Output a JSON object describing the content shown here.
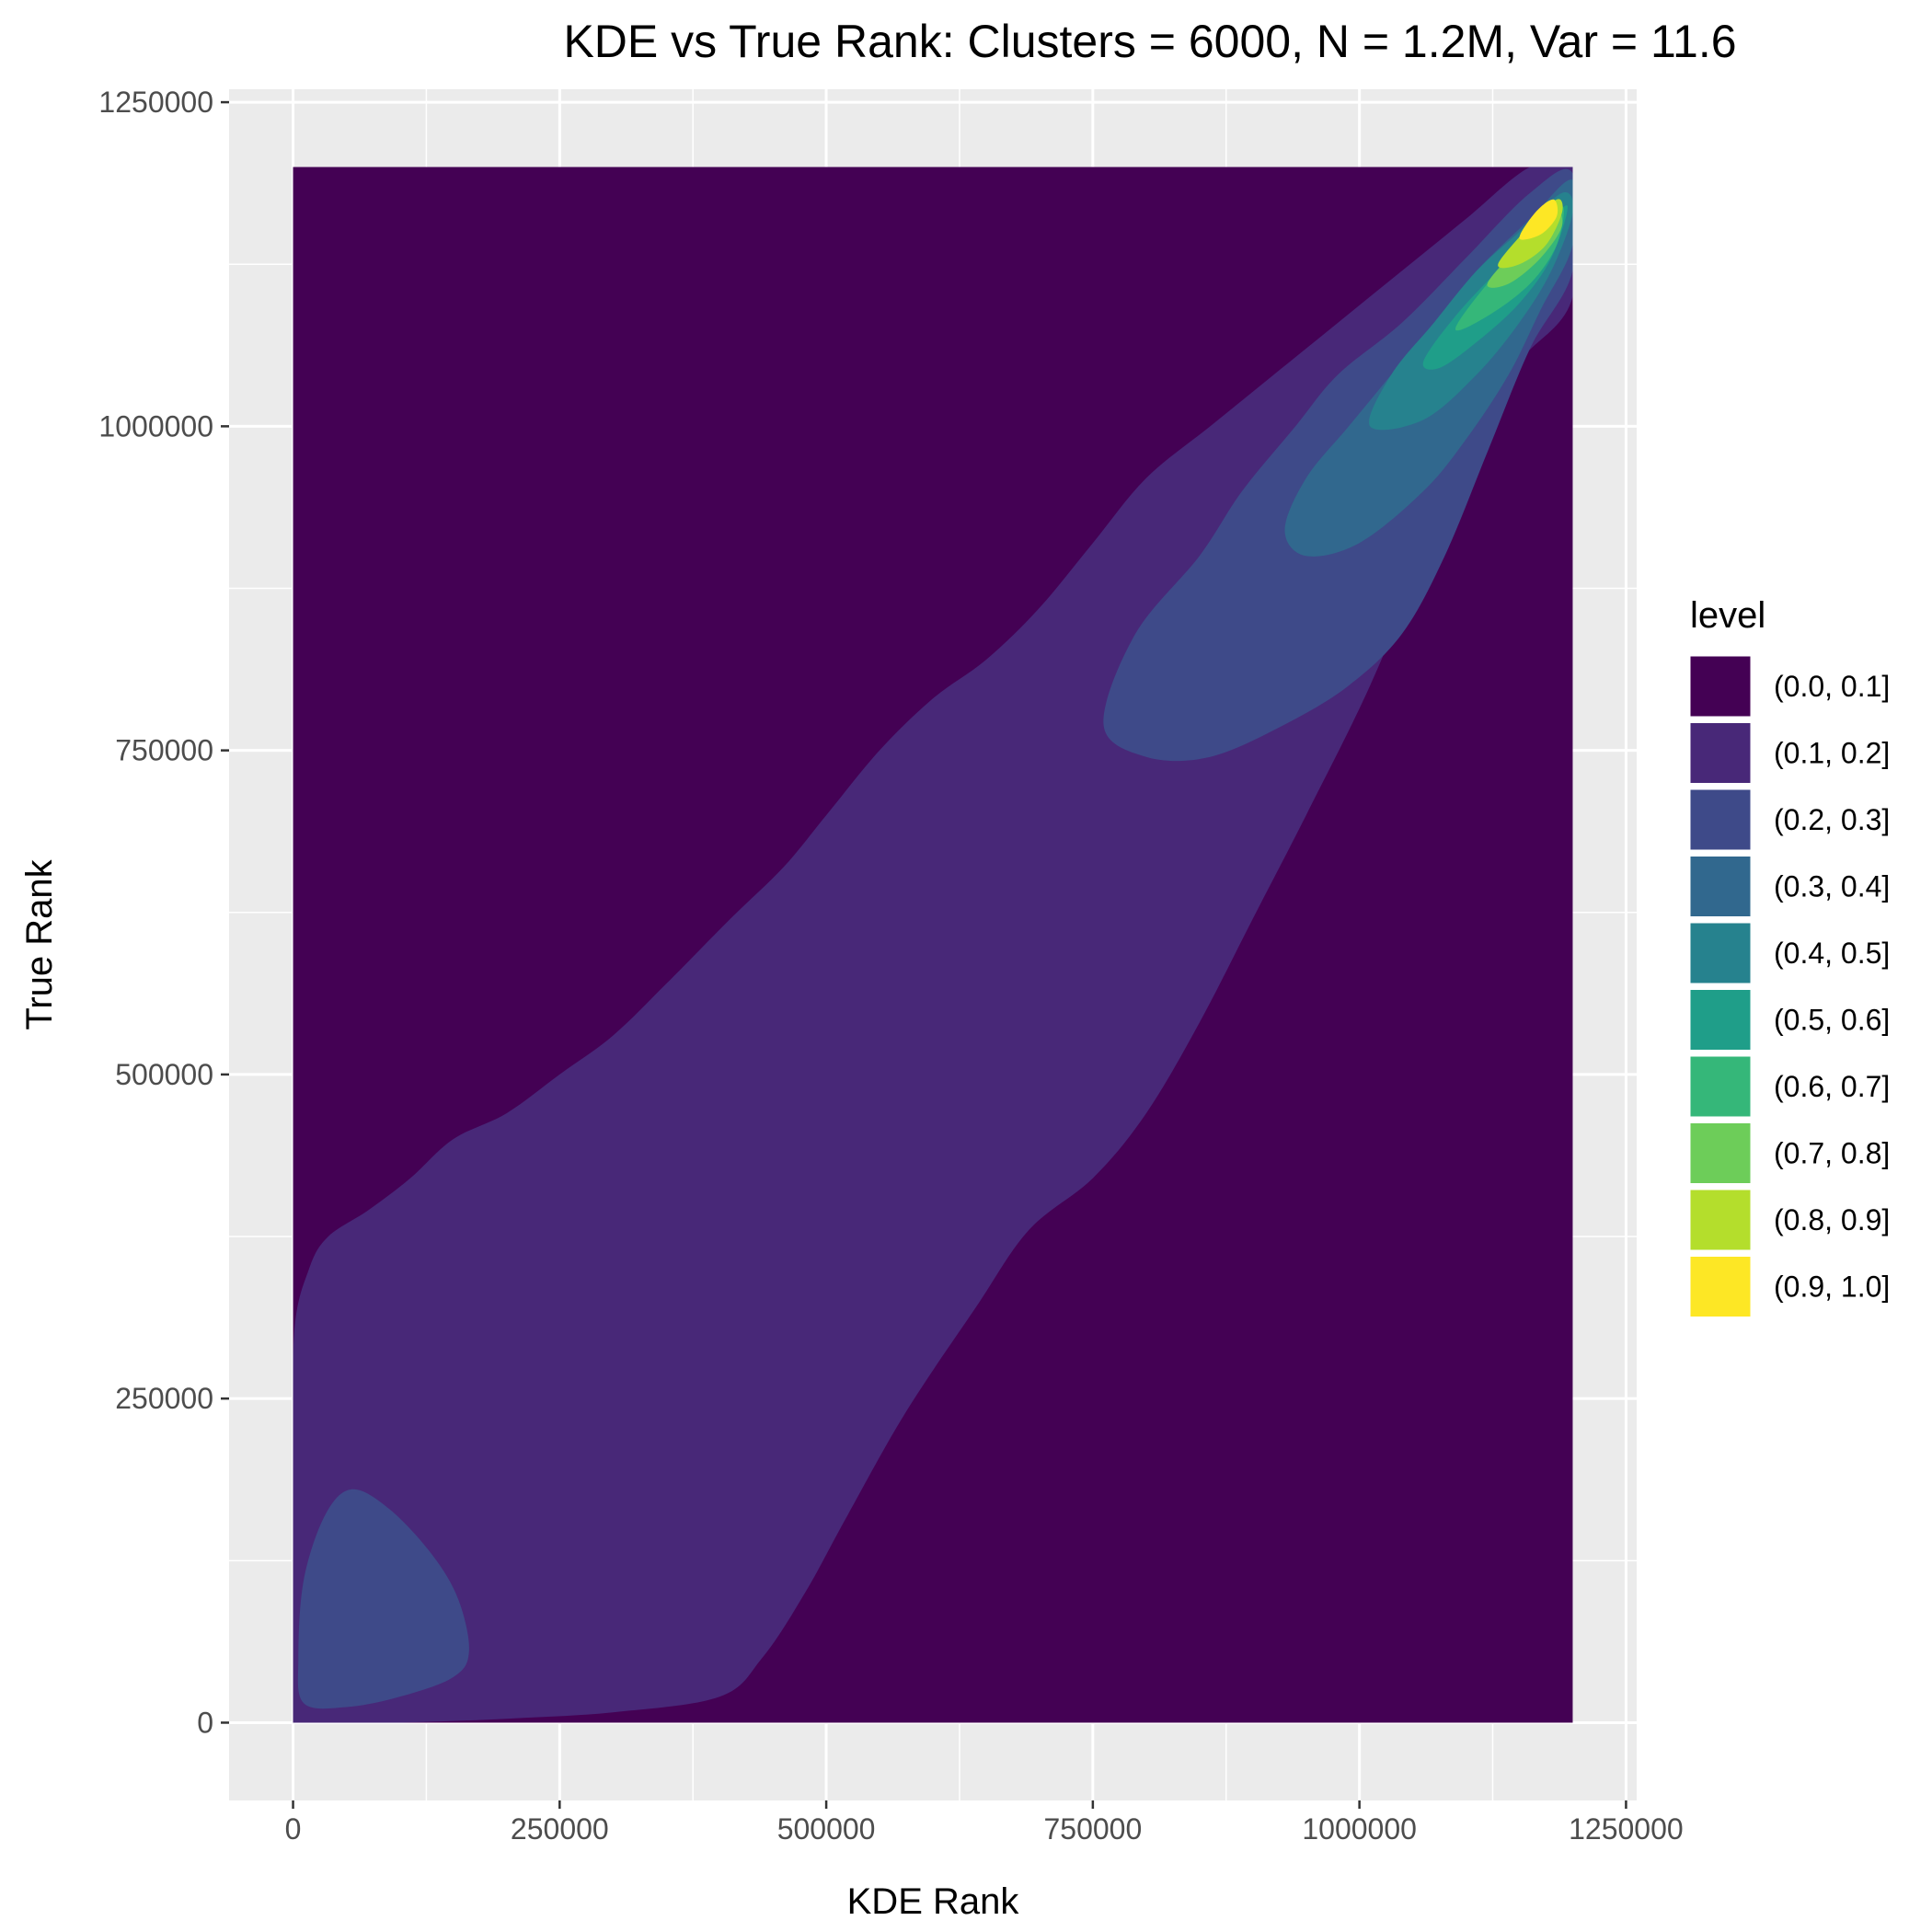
{
  "chart_data": {
    "type": "density-contour",
    "title": "KDE vs True Rank: Clusters = 6000, N = 1.2M, Var = 11.6",
    "xlabel": "KDE Rank",
    "ylabel": "True Rank",
    "xlim": [
      -60000,
      1260000
    ],
    "ylim": [
      -60000,
      1260000
    ],
    "x_ticks": [
      0,
      250000,
      500000,
      750000,
      1000000,
      1250000
    ],
    "x_tick_labels": [
      "0",
      "250000",
      "500000",
      "750000",
      "1000000",
      "1250000"
    ],
    "y_ticks": [
      0,
      250000,
      500000,
      750000,
      1000000,
      1250000
    ],
    "y_tick_labels": [
      "0",
      "250000",
      "500000",
      "750000",
      "1000000",
      "1250000"
    ],
    "data_extent": {
      "x": [
        0,
        1200000
      ],
      "y": [
        0,
        1200000
      ]
    },
    "grid": true,
    "legend": {
      "title": "level",
      "position": "right",
      "levels": [
        {
          "label": "(0.0, 0.1]",
          "color": "#440154"
        },
        {
          "label": "(0.1, 0.2]",
          "color": "#482878"
        },
        {
          "label": "(0.2, 0.3]",
          "color": "#3E4A89"
        },
        {
          "label": "(0.3, 0.4]",
          "color": "#31688E"
        },
        {
          "label": "(0.4, 0.5]",
          "color": "#26828E"
        },
        {
          "label": "(0.5, 0.6]",
          "color": "#1F9E89"
        },
        {
          "label": "(0.6, 0.7]",
          "color": "#35B779"
        },
        {
          "label": "(0.7, 0.8]",
          "color": "#6DCD59"
        },
        {
          "label": "(0.8, 0.9]",
          "color": "#B4DE2C"
        },
        {
          "label": "(0.9, 1.0]",
          "color": "#FDE725"
        }
      ]
    },
    "contours": [
      {
        "level_index": 1,
        "points": [
          [
            0,
            1
          ],
          [
            0,
            184000
          ],
          [
            1000,
            300000
          ],
          [
            15000,
            350000
          ],
          [
            33000,
            375000
          ],
          [
            70000,
            395000
          ],
          [
            110000,
            420000
          ],
          [
            150000,
            450000
          ],
          [
            200000,
            470000
          ],
          [
            250000,
            500000
          ],
          [
            300000,
            530000
          ],
          [
            350000,
            570000
          ],
          [
            410000,
            620000
          ],
          [
            460000,
            660000
          ],
          [
            500000,
            700000
          ],
          [
            550000,
            750000
          ],
          [
            600000,
            790000
          ],
          [
            650000,
            820000
          ],
          [
            700000,
            860000
          ],
          [
            750000,
            910000
          ],
          [
            800000,
            960000
          ],
          [
            860000,
            1000000
          ],
          [
            920000,
            1040000
          ],
          [
            980000,
            1080000
          ],
          [
            1040000,
            1120000
          ],
          [
            1100000,
            1160000
          ],
          [
            1160000,
            1200000
          ],
          [
            1200000,
            1200000
          ],
          [
            1200000,
            1100000
          ],
          [
            1150000,
            1050000
          ],
          [
            1100000,
            990000
          ],
          [
            1060000,
            900000
          ],
          [
            1010000,
            800000
          ],
          [
            950000,
            700000
          ],
          [
            900000,
            620000
          ],
          [
            850000,
            540000
          ],
          [
            800000,
            470000
          ],
          [
            750000,
            420000
          ],
          [
            690000,
            380000
          ],
          [
            640000,
            320000
          ],
          [
            575000,
            240000
          ],
          [
            520000,
            160000
          ],
          [
            480000,
            100000
          ],
          [
            440000,
            50000
          ],
          [
            400000,
            20000
          ],
          [
            300000,
            8000
          ],
          [
            200000,
            3000
          ],
          [
            100000,
            1
          ],
          [
            30000,
            1
          ]
        ]
      },
      {
        "level_index": 2,
        "points": [
          [
            10000,
            15000
          ],
          [
            5000,
            50000
          ],
          [
            10000,
            110000
          ],
          [
            30000,
            160000
          ],
          [
            55000,
            180000
          ],
          [
            90000,
            165000
          ],
          [
            130000,
            130000
          ],
          [
            155000,
            95000
          ],
          [
            165000,
            55000
          ],
          [
            150000,
            35000
          ],
          [
            100000,
            20000
          ],
          [
            50000,
            12000
          ]
        ]
      },
      {
        "level_index": 2,
        "points": [
          [
            760000,
            770000
          ],
          [
            790000,
            840000
          ],
          [
            850000,
            900000
          ],
          [
            890000,
            950000
          ],
          [
            940000,
            1000000
          ],
          [
            980000,
            1040000
          ],
          [
            1040000,
            1080000
          ],
          [
            1100000,
            1130000
          ],
          [
            1160000,
            1180000
          ],
          [
            1200000,
            1195000
          ],
          [
            1200000,
            1120000
          ],
          [
            1160000,
            1060000
          ],
          [
            1120000,
            980000
          ],
          [
            1080000,
            900000
          ],
          [
            1040000,
            840000
          ],
          [
            990000,
            800000
          ],
          [
            930000,
            770000
          ],
          [
            860000,
            745000
          ],
          [
            800000,
            745000
          ]
        ]
      },
      {
        "level_index": 3,
        "points": [
          [
            930000,
            920000
          ],
          [
            950000,
            960000
          ],
          [
            990000,
            1000000
          ],
          [
            1030000,
            1040000
          ],
          [
            1070000,
            1080000
          ],
          [
            1110000,
            1120000
          ],
          [
            1160000,
            1160000
          ],
          [
            1200000,
            1190000
          ],
          [
            1200000,
            1140000
          ],
          [
            1170000,
            1090000
          ],
          [
            1140000,
            1040000
          ],
          [
            1100000,
            990000
          ],
          [
            1060000,
            950000
          ],
          [
            1000000,
            910000
          ],
          [
            950000,
            900000
          ]
        ]
      },
      {
        "level_index": 4,
        "points": [
          [
            1010000,
            1000000
          ],
          [
            1030000,
            1040000
          ],
          [
            1070000,
            1080000
          ],
          [
            1110000,
            1120000
          ],
          [
            1150000,
            1150000
          ],
          [
            1190000,
            1180000
          ],
          [
            1200000,
            1165000
          ],
          [
            1180000,
            1120000
          ],
          [
            1150000,
            1080000
          ],
          [
            1110000,
            1040000
          ],
          [
            1060000,
            1005000
          ]
        ]
      },
      {
        "level_index": 5,
        "points": [
          [
            1060000,
            1050000
          ],
          [
            1090000,
            1085000
          ],
          [
            1130000,
            1120000
          ],
          [
            1170000,
            1150000
          ],
          [
            1195000,
            1170000
          ],
          [
            1180000,
            1130000
          ],
          [
            1150000,
            1095000
          ],
          [
            1110000,
            1065000
          ],
          [
            1075000,
            1045000
          ]
        ]
      },
      {
        "level_index": 6,
        "points": [
          [
            1090000,
            1075000
          ],
          [
            1120000,
            1110000
          ],
          [
            1160000,
            1145000
          ],
          [
            1190000,
            1170000
          ],
          [
            1185000,
            1140000
          ],
          [
            1160000,
            1110000
          ],
          [
            1120000,
            1085000
          ]
        ]
      },
      {
        "level_index": 7,
        "points": [
          [
            1120000,
            1110000
          ],
          [
            1150000,
            1140000
          ],
          [
            1180000,
            1170000
          ],
          [
            1190000,
            1155000
          ],
          [
            1170000,
            1130000
          ],
          [
            1140000,
            1110000
          ]
        ]
      },
      {
        "level_index": 8,
        "points": [
          [
            1130000,
            1125000
          ],
          [
            1160000,
            1155000
          ],
          [
            1185000,
            1175000
          ],
          [
            1190000,
            1165000
          ],
          [
            1175000,
            1140000
          ],
          [
            1150000,
            1125000
          ]
        ]
      },
      {
        "level_index": 9,
        "points": [
          [
            1150000,
            1145000
          ],
          [
            1165000,
            1165000
          ],
          [
            1182000,
            1175000
          ],
          [
            1185000,
            1162000
          ],
          [
            1170000,
            1148000
          ]
        ]
      }
    ]
  }
}
